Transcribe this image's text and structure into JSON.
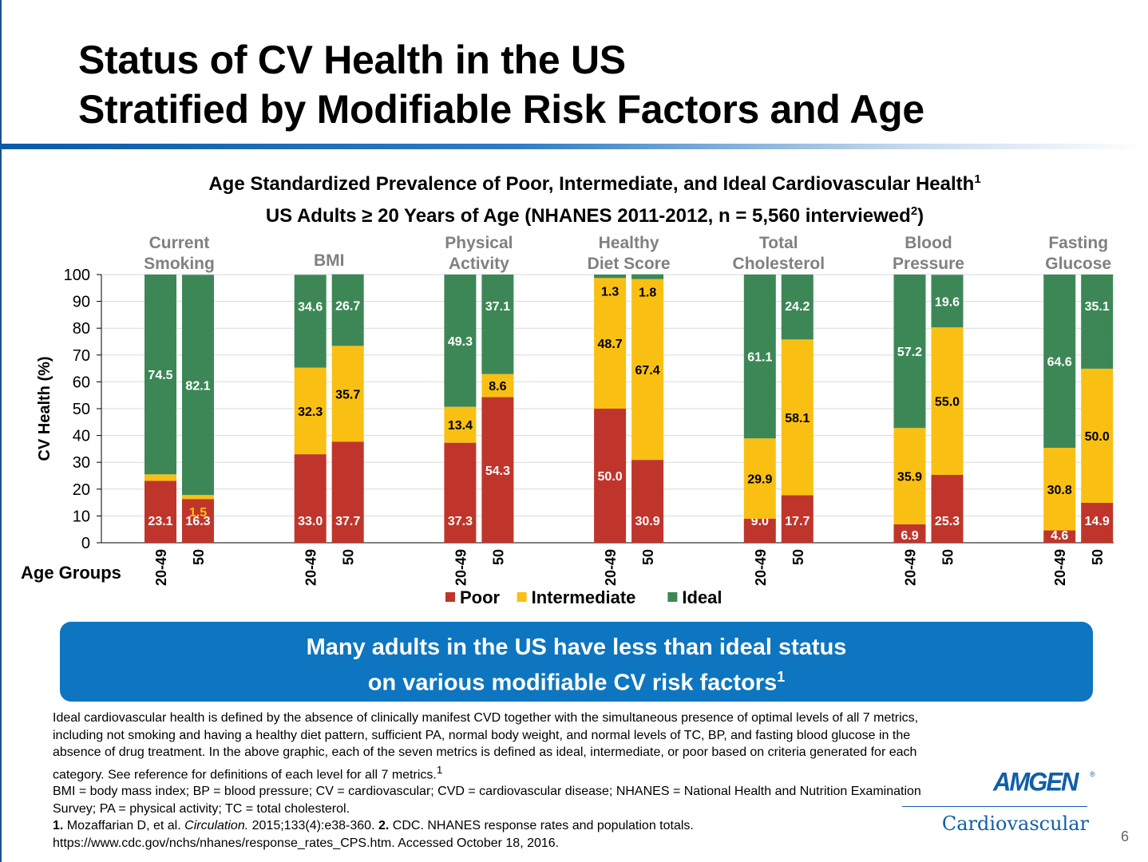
{
  "title": {
    "line1": "Status of CV Health in the US",
    "line2": "Stratified by Modifiable Risk Factors and Age"
  },
  "subtitle": {
    "line1": "Age Standardized Prevalence of Poor, Intermediate, and Ideal Cardiovascular Health",
    "line1_sup": "1",
    "line2_pre": "US Adults ≥ 20 Years of Age (NHANES 2011-2012, n = 5,560 interviewed",
    "line2_sup": "2",
    "line2_post": ")"
  },
  "chart_data": {
    "type": "bar",
    "stacked": true,
    "ylabel": "CV Health (%)",
    "xlabel": "Age Groups",
    "ylim": [
      0,
      100
    ],
    "yticks": [
      0,
      10,
      20,
      30,
      40,
      50,
      60,
      70,
      80,
      90,
      100
    ],
    "legend_position": "bottom",
    "groups": [
      {
        "label_lines": [
          "Current",
          "Smoking"
        ],
        "bars": [
          {
            "age": "20-49",
            "poor": 23.1,
            "intermediate": 2.4,
            "ideal": 74.5
          },
          {
            "age": "50",
            "poor": 16.3,
            "intermediate": 1.5,
            "ideal": 82.1
          }
        ]
      },
      {
        "label_lines": [
          "BMI"
        ],
        "bars": [
          {
            "age": "20-49",
            "poor": 33.0,
            "intermediate": 32.3,
            "ideal": 34.6
          },
          {
            "age": "50",
            "poor": 37.7,
            "intermediate": 35.7,
            "ideal": 26.7
          }
        ]
      },
      {
        "label_lines": [
          "Physical",
          "Activity"
        ],
        "bars": [
          {
            "age": "20-49",
            "poor": 37.3,
            "intermediate": 13.4,
            "ideal": 49.3
          },
          {
            "age": "50",
            "poor": 54.3,
            "intermediate": 8.6,
            "ideal": 37.1
          }
        ]
      },
      {
        "label_lines": [
          "Healthy",
          "Diet Score"
        ],
        "bars": [
          {
            "age": "20-49",
            "poor": 50.0,
            "intermediate": 48.7,
            "ideal": 1.3
          },
          {
            "age": "50",
            "poor": 30.9,
            "intermediate": 67.4,
            "ideal": 1.8
          }
        ]
      },
      {
        "label_lines": [
          "Total",
          "Cholesterol"
        ],
        "bars": [
          {
            "age": "20-49",
            "poor": 9.0,
            "intermediate": 29.9,
            "ideal": 61.1
          },
          {
            "age": "50",
            "poor": 17.7,
            "intermediate": 58.1,
            "ideal": 24.2
          }
        ]
      },
      {
        "label_lines": [
          "Blood",
          "Pressure"
        ],
        "bars": [
          {
            "age": "20-49",
            "poor": 6.9,
            "intermediate": 35.9,
            "ideal": 57.2
          },
          {
            "age": "50",
            "poor": 25.3,
            "intermediate": 55.0,
            "ideal": 19.6
          }
        ]
      },
      {
        "label_lines": [
          "Fasting",
          "Glucose"
        ],
        "bars": [
          {
            "age": "20-49",
            "poor": 4.6,
            "intermediate": 30.8,
            "ideal": 64.6
          },
          {
            "age": "50",
            "poor": 14.9,
            "intermediate": 50.0,
            "ideal": 35.1
          }
        ]
      }
    ],
    "series": [
      {
        "key": "poor",
        "name": "Poor",
        "color": "#c0352b"
      },
      {
        "key": "intermediate",
        "name": "Intermediate",
        "color": "#f9c013"
      },
      {
        "key": "ideal",
        "name": "Ideal",
        "color": "#3d8757"
      }
    ],
    "category_label_color": "#808080"
  },
  "callout": {
    "line1": "Many adults in the US have less than ideal status",
    "line2": "on various modifiable CV risk factors",
    "sup": "1"
  },
  "notes": {
    "p1": "Ideal cardiovascular health is defined by the absence of clinically manifest CVD together with the simultaneous presence of optimal levels of all 7 metrics, including not smoking and having a healthy diet pattern, sufficient PA, normal body weight, and normal levels of TC, BP, and fasting blood glucose in the absence of drug treatment. In the above graphic, each of the seven metrics is defined as ideal, intermediate, or poor based on criteria generated for each category. See reference for definitions of each level for all 7 metrics.",
    "p1_sup": "1",
    "p2": "BMI = body mass index; BP = blood pressure; CV = cardiovascular; CVD = cardiovascular disease; NHANES = National Health and Nutrition Examination Survey; PA = physical activity; TC = total cholesterol."
  },
  "refs": {
    "n1": "1.",
    "r1_pre": "Mozaffarian D, et al.",
    "r1_journal": "Circulation.",
    "r1_post": "2015;133(4):e38-360.",
    "n2": "2.",
    "r2": "CDC. NHANES response rates and population totals.",
    "r2_url": "https://www.cdc.gov/nchs/nhanes/response_rates_CPS.htm. Accessed October 18, 2016."
  },
  "logo": {
    "word": "AMGEN",
    "reg": "®",
    "sub": "Cardiovascular"
  },
  "page_number": "6"
}
